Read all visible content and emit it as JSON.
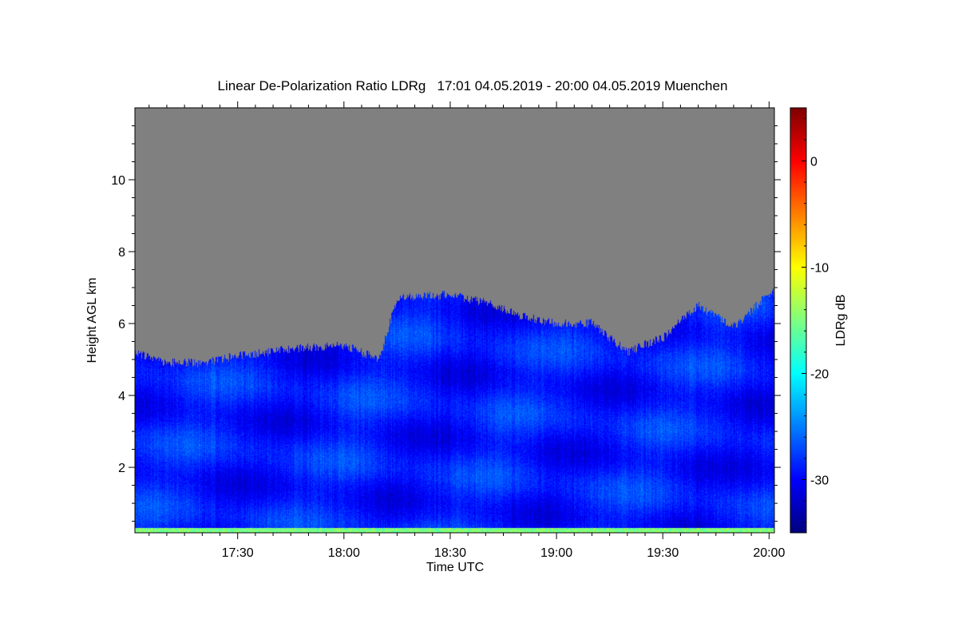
{
  "chart_data": {
    "type": "heatmap",
    "title": "Linear De-Polarization Ratio LDRg   17:01 04.05.2019 - 20:00 04.05.2019 Muenchen",
    "xlabel": "Time UTC",
    "ylabel": "Height AGL km",
    "colorbar_label": "LDRg dB",
    "x_range_minutes_utc": [
      1021,
      1201.5
    ],
    "ylim": [
      0.18,
      12
    ],
    "clim": [
      -35,
      5
    ],
    "colormap": "jet",
    "no_data_color": "#808080",
    "x_ticks": [
      {
        "v": 1050,
        "label": "17:30"
      },
      {
        "v": 1080,
        "label": "18:00"
      },
      {
        "v": 1110,
        "label": "18:30"
      },
      {
        "v": 1140,
        "label": "19:00"
      },
      {
        "v": 1170,
        "label": "19:30"
      },
      {
        "v": 1200,
        "label": "20:00"
      }
    ],
    "y_ticks": [
      {
        "v": 2,
        "label": "2"
      },
      {
        "v": 4,
        "label": "4"
      },
      {
        "v": 6,
        "label": "6"
      },
      {
        "v": 8,
        "label": "8"
      },
      {
        "v": 10,
        "label": "10"
      }
    ],
    "c_ticks": [
      {
        "v": 0,
        "label": "0"
      },
      {
        "v": -10,
        "label": "-10"
      },
      {
        "v": -20,
        "label": "-20"
      },
      {
        "v": -30,
        "label": "-30"
      }
    ],
    "signal_top_km": {
      "time_min": [
        1021,
        1030,
        1040,
        1050,
        1065,
        1080,
        1090,
        1095,
        1110,
        1120,
        1130,
        1140,
        1150,
        1160,
        1170,
        1180,
        1190,
        1201
      ],
      "height_km": [
        5.2,
        4.9,
        4.9,
        5.1,
        5.3,
        5.4,
        5.0,
        6.7,
        6.8,
        6.6,
        6.2,
        6.0,
        6.0,
        5.2,
        5.6,
        6.5,
        5.9,
        6.9
      ]
    },
    "typical_ldr_db": -29,
    "near_surface_ldr_db": -15
  }
}
